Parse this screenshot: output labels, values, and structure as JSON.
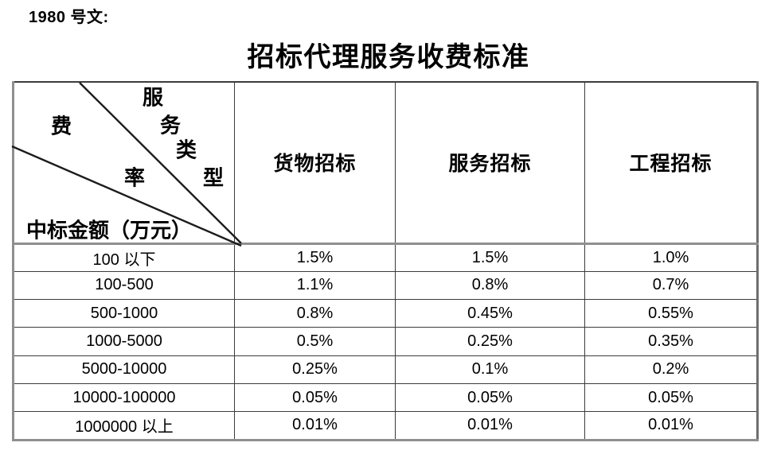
{
  "page": {
    "doc_label": "1980 号文:",
    "title": "招标代理服务收费标准"
  },
  "table": {
    "corner": {
      "service_type_chars": [
        "服",
        "务",
        "类",
        "型"
      ],
      "fee_rate_chars": [
        "费",
        "率"
      ],
      "amount_label": "中标金额（万元）"
    },
    "columns": [
      "货物招标",
      "服务招标",
      "工程招标"
    ],
    "rows": [
      {
        "range": "100 以下",
        "rates": [
          "1.5%",
          "1.5%",
          "1.0%"
        ]
      },
      {
        "range": "100-500",
        "rates": [
          "1.1%",
          "0.8%",
          "0.7%"
        ]
      },
      {
        "range": "500-1000",
        "rates": [
          "0.8%",
          "0.45%",
          "0.55%"
        ]
      },
      {
        "range": "1000-5000",
        "rates": [
          "0.5%",
          "0.25%",
          "0.35%"
        ]
      },
      {
        "range": "5000-10000",
        "rates": [
          "0.25%",
          "0.1%",
          "0.2%"
        ]
      },
      {
        "range": "10000-100000",
        "rates": [
          "0.05%",
          "0.05%",
          "0.05%"
        ]
      },
      {
        "range": "1000000 以上",
        "rates": [
          "0.01%",
          "0.01%",
          "0.01%"
        ]
      }
    ]
  },
  "style": {
    "line_color": "#1c1c1c",
    "thick_border_color": "#8f8f8f",
    "thin_border_color": "#3b3b3b"
  }
}
